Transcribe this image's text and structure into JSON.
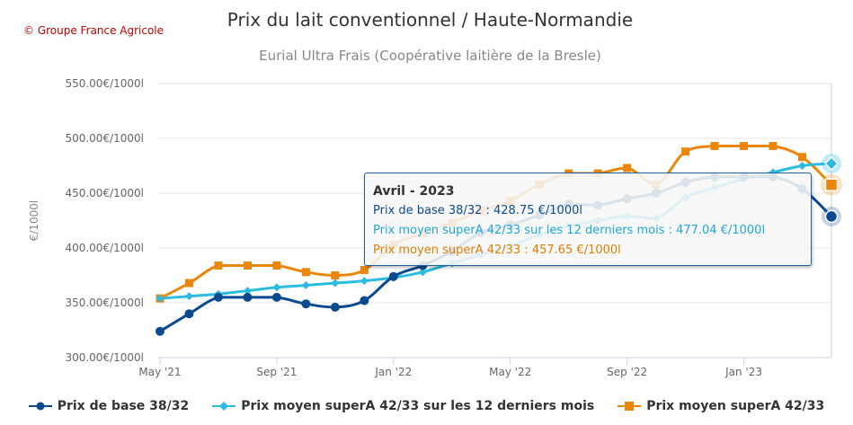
{
  "header": {
    "credit": "© Groupe France Agricole"
  },
  "chart_data": {
    "type": "line",
    "title": "Prix du lait conventionnel / Haute-Normandie",
    "subtitle": "Eurial Ultra Frais (Coopérative laitière de la Bresle)",
    "xlabel": "",
    "ylabel": "€/1000l",
    "ylim": [
      300,
      550
    ],
    "yticks": [
      300,
      350,
      400,
      450,
      500,
      550
    ],
    "ytick_labels": [
      "300.00€/1000l",
      "350.00€/1000l",
      "400.00€/1000l",
      "450.00€/1000l",
      "500.00€/1000l",
      "550.00€/1000l"
    ],
    "x": [
      "2021-05",
      "2021-06",
      "2021-07",
      "2021-08",
      "2021-09",
      "2021-10",
      "2021-11",
      "2021-12",
      "2022-01",
      "2022-02",
      "2022-03",
      "2022-04",
      "2022-05",
      "2022-06",
      "2022-07",
      "2022-08",
      "2022-09",
      "2022-10",
      "2022-11",
      "2022-12",
      "2023-01",
      "2023-02",
      "2023-03",
      "2023-04"
    ],
    "xtick_labels": [
      {
        "x": "2021-05",
        "label": "May '21"
      },
      {
        "x": "2021-09",
        "label": "Sep '21"
      },
      {
        "x": "2022-01",
        "label": "Jan '22"
      },
      {
        "x": "2022-05",
        "label": "May '22"
      },
      {
        "x": "2022-09",
        "label": "Sep '22"
      },
      {
        "x": "2023-01",
        "label": "Jan '23"
      }
    ],
    "grid": "horizontal",
    "legend_position": "bottom-center",
    "series": [
      {
        "name": "Prix de base 38/32",
        "color": "#0b4a8f",
        "marker": "circle",
        "values": [
          324,
          340,
          355,
          355,
          355,
          349,
          346,
          352,
          374,
          384,
          397,
          414,
          421,
          430,
          440,
          439,
          445,
          450,
          460,
          465,
          465,
          465,
          454,
          428.75
        ]
      },
      {
        "name": "Prix moyen superA 42/33 sur les 12 derniers mois",
        "color": "#2bbce0",
        "marker": "diamond",
        "values": [
          354,
          356,
          358,
          361,
          364,
          366,
          368,
          370,
          373,
          378,
          386,
          394,
          402,
          412,
          420,
          425,
          429,
          427,
          446,
          455,
          463,
          469,
          475,
          477.04
        ]
      },
      {
        "name": "Prix moyen superA 42/33",
        "color": "#ea860b",
        "marker": "square",
        "values": [
          354,
          368,
          384,
          384,
          384,
          378,
          375,
          380,
          403,
          413,
          423,
          434,
          443,
          458,
          468,
          468,
          473,
          458,
          488,
          493,
          493,
          493,
          483,
          457.65
        ]
      }
    ],
    "tooltip": {
      "header": "Avril - 2023",
      "lines": [
        "Prix de base 38/32 : 428.75 €/1000l",
        "Prix moyen superA 42/33 sur les 12 derniers mois : 477.04 €/1000l",
        "Prix moyen superA 42/33 : 457.65 €/1000l"
      ]
    }
  }
}
